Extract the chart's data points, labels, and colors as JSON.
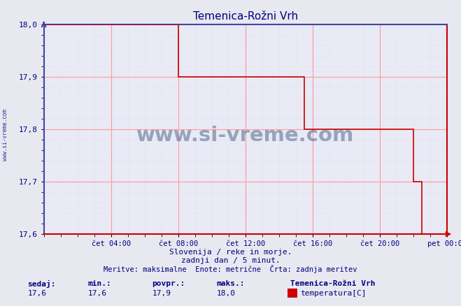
{
  "title": "Temenica-Rožni Vrh",
  "title_color": "#000080",
  "bg_color": "#e8e8f0",
  "plot_bg_color": "#e8eaf5",
  "grid_color_major": "#ff9999",
  "grid_color_minor": "#ffcccc",
  "line_color": "#cc0000",
  "axis_left_color": "#4444aa",
  "axis_bottom_color": "#cc0000",
  "tick_color": "#000080",
  "ylim": [
    17.6,
    18.0
  ],
  "yticks": [
    17.6,
    17.7,
    17.8,
    17.9,
    18.0
  ],
  "xlabel_items": [
    "čet 04:00",
    "čet 08:00",
    "čet 12:00",
    "čet 16:00",
    "čet 20:00",
    "pet 00:00"
  ],
  "watermark_text": "www.si-vreme.com",
  "watermark_color": "#1a3a6b",
  "watermark_alpha": 0.4,
  "side_text": "www.si-vreme.com",
  "footer_line1": "Slovenija / reke in morje.",
  "footer_line2": "zadnji dan / 5 minut.",
  "footer_line3": "Meritve: maksimalne  Enote: metrične  Črta: zadnja meritev",
  "footer_color": "#000080",
  "stats_labels": [
    "sedaj:",
    "min.:",
    "povpr.:",
    "maks.:"
  ],
  "stats_values": [
    "17,6",
    "17,6",
    "17,9",
    "18,0"
  ],
  "legend_station": "Temenica-Rožni Vrh",
  "legend_series": "temperatura[C]",
  "legend_color": "#cc0000",
  "steps_hours": [
    0,
    8.0,
    8.0,
    15.5,
    15.5,
    22.0,
    22.0,
    22.5,
    22.5,
    24.0
  ],
  "steps_vals": [
    18.0,
    18.0,
    17.9,
    17.9,
    17.8,
    17.8,
    17.7,
    17.7,
    17.6,
    17.6
  ]
}
